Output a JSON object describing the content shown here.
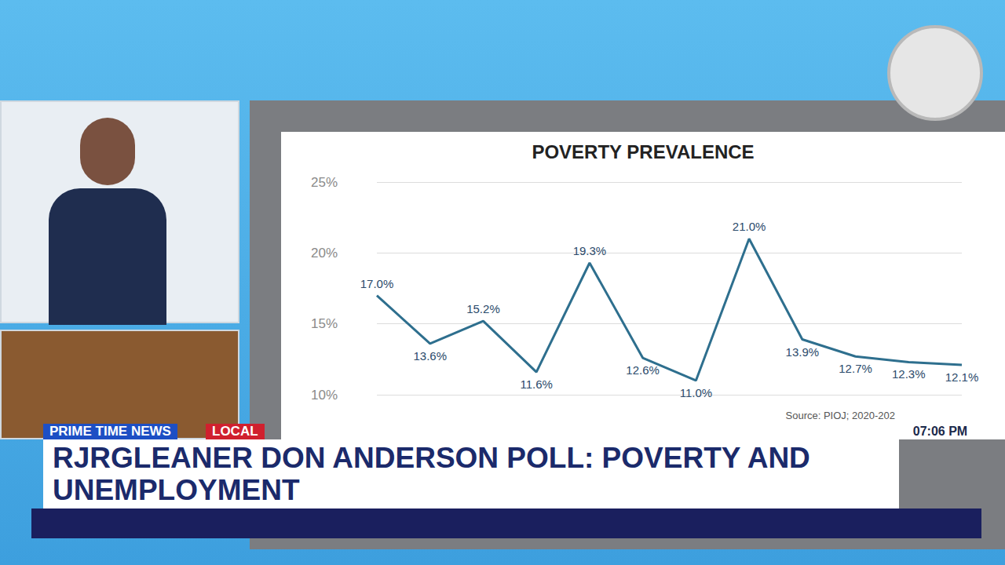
{
  "chart_data": {
    "type": "line",
    "title": "POVERTY PREVALENCE",
    "categories": [
      null,
      null,
      null,
      null,
      null,
      null,
      null,
      null,
      null,
      null,
      null,
      null
    ],
    "values": [
      17.0,
      13.6,
      15.2,
      11.6,
      19.3,
      12.6,
      11.0,
      21.0,
      13.9,
      12.7,
      12.3,
      12.1
    ],
    "value_labels": [
      "17.0%",
      "13.6%",
      "15.2%",
      "11.6%",
      "19.3%",
      "12.6%",
      "11.0%",
      "21.0%",
      "13.9%",
      "12.7%",
      "12.3%",
      "12.1%"
    ],
    "color": "#2e6f8e",
    "marker": "none",
    "ylim": [
      10,
      25
    ],
    "yticks": [
      {
        "value": 10,
        "label": "10%"
      },
      {
        "value": 15,
        "label": "15%"
      },
      {
        "value": 20,
        "label": "20%"
      },
      {
        "value": 25,
        "label": "25%"
      }
    ],
    "grid": true,
    "data_labels": true,
    "tick_labels": "y",
    "annotations": [
      "Source: PIOJ; 2020-202"
    ]
  },
  "broadcast": {
    "program": "PRIME TIME NEWS",
    "section": "LOCAL",
    "time": "07:06 PM",
    "headline": "RJRGLEANER DON ANDERSON POLL: POVERTY AND UNEMPLOYMENT"
  }
}
